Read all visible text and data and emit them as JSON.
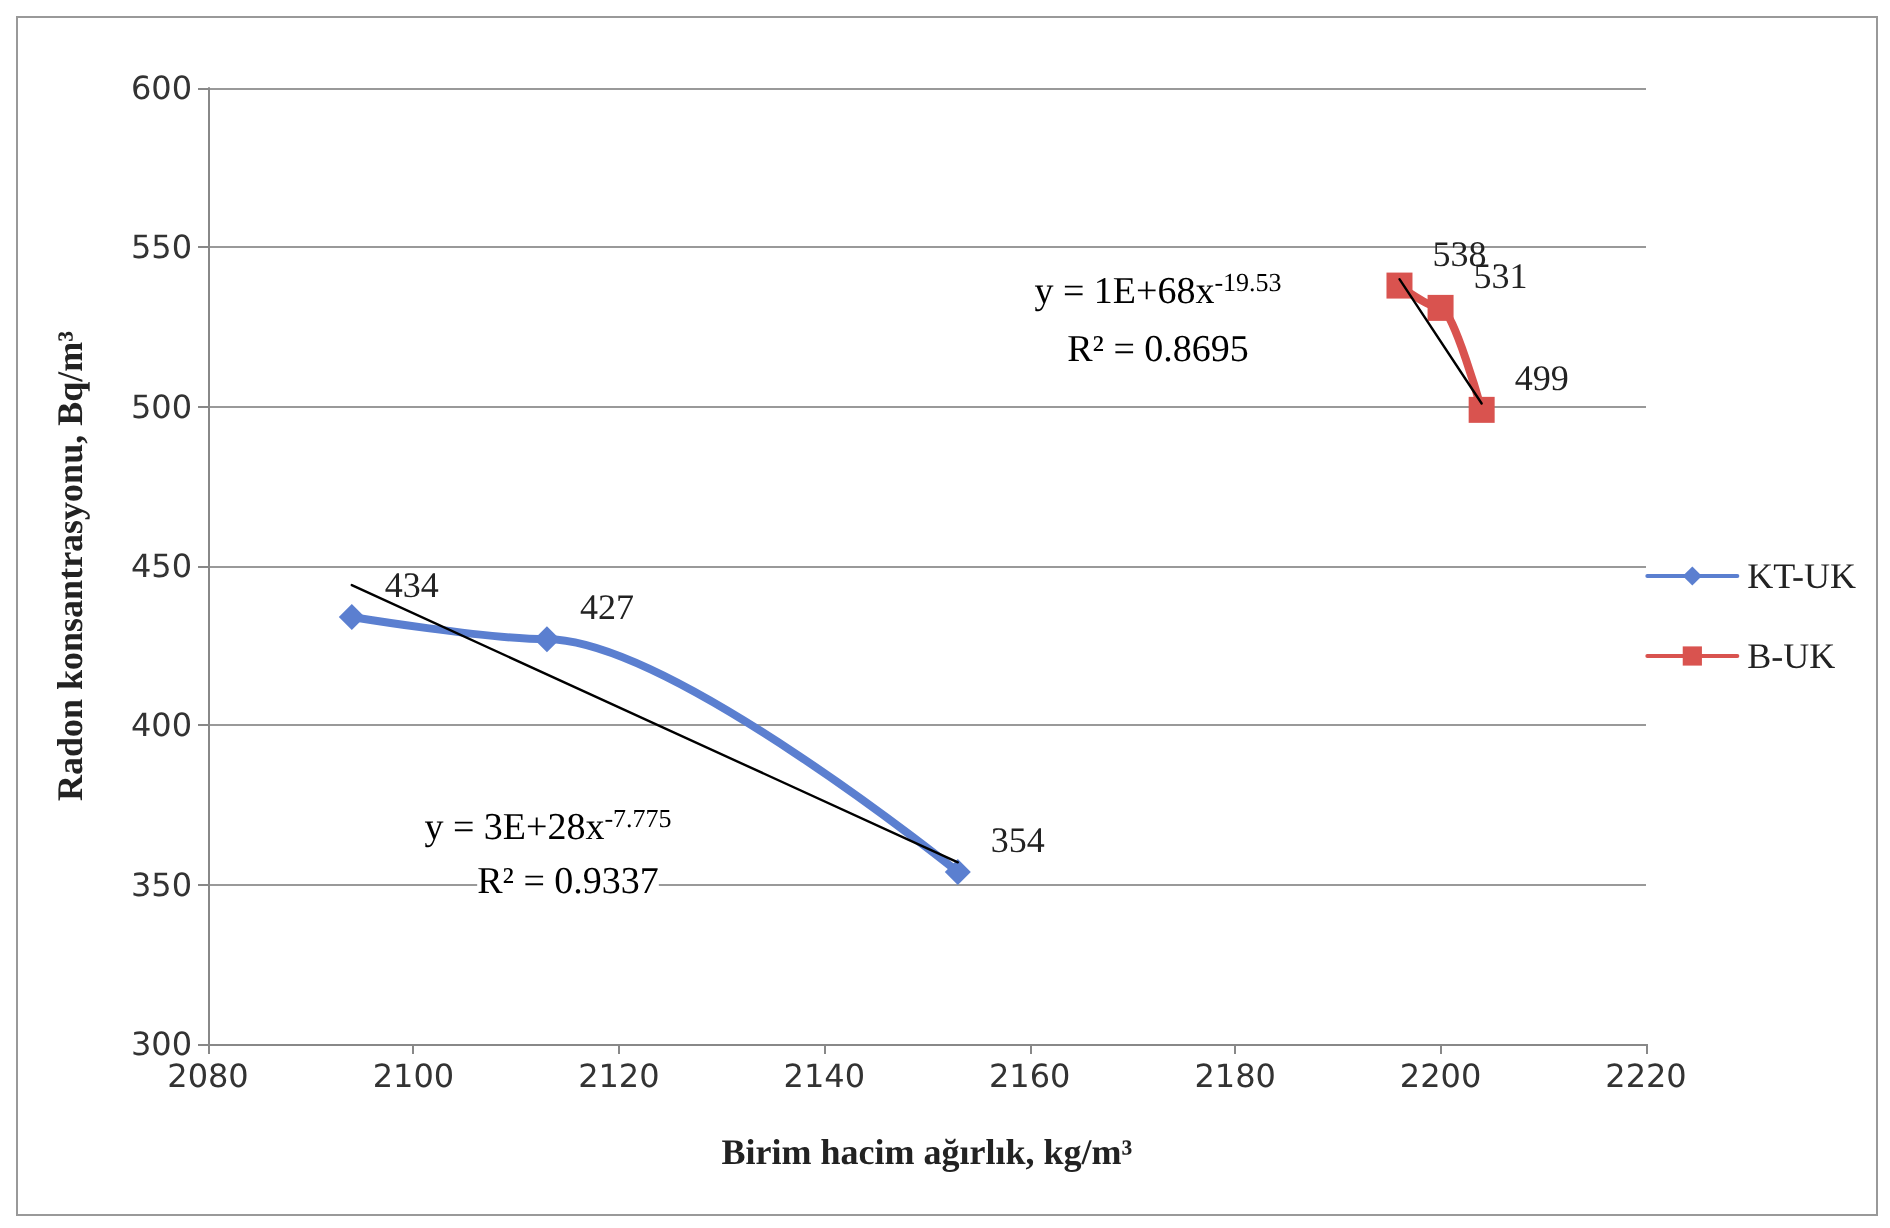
{
  "chart_data": {
    "type": "line",
    "xlabel": "Birim hacim ağırlık, kg/m³",
    "ylabel": "Radon konsantrasyonu, Bq/m³",
    "xlim": [
      2080,
      2220
    ],
    "xticks": [
      2080,
      2100,
      2120,
      2140,
      2160,
      2180,
      2200,
      2220
    ],
    "ylim": [
      300,
      600
    ],
    "yticks": [
      300,
      350,
      400,
      450,
      500,
      550,
      600
    ],
    "grid": "y",
    "legend": "right",
    "series": [
      {
        "name": "KT-UK",
        "color": "#5b7fd0",
        "marker": "diamond",
        "x": [
          2094,
          2113,
          2153
        ],
        "values": [
          434,
          427,
          354
        ],
        "value_labels": [
          "434",
          "427",
          "354"
        ]
      },
      {
        "name": "B-UK",
        "color": "#d9534f",
        "marker": "square",
        "x": [
          2196,
          2200,
          2204
        ],
        "values": [
          538,
          531,
          499
        ],
        "value_labels": [
          "538",
          "531",
          "499"
        ]
      },
      {
        "type": "line",
        "color": "#000000",
        "marker": "none",
        "x": [
          2094,
          2153
        ],
        "values": [
          444,
          357
        ]
      },
      {
        "type": "line",
        "color": "#000000",
        "marker": "none",
        "x": [
          2196,
          2204
        ],
        "values": [
          540,
          501
        ]
      }
    ],
    "annotations": [
      "y = 3E+28x$^{-7.775}$",
      "R² = 0.9337",
      "y = 1E+68x$^{-19.53}$",
      "R² = 0.8695"
    ]
  }
}
